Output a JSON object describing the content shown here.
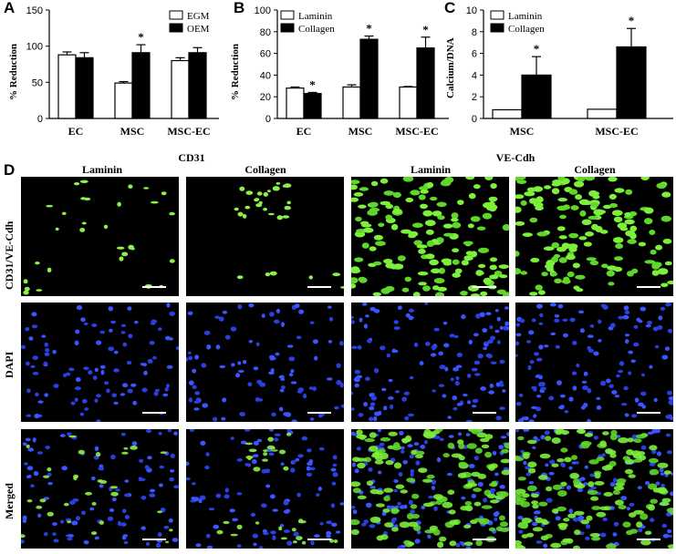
{
  "charts": [
    {
      "panel": "A",
      "type": "bar",
      "ylabel": "% Reduction",
      "ylim": [
        0,
        150
      ],
      "yticks": [
        "0",
        "50",
        "100",
        "150"
      ],
      "categories": [
        "EC",
        "MSC",
        "MSC-EC"
      ],
      "legend": [
        "EGM",
        "OEM"
      ],
      "series": [
        {
          "name": "EGM",
          "values": [
            88,
            49,
            80
          ],
          "errors": [
            4,
            2,
            4
          ],
          "fill": "#ffffff"
        },
        {
          "name": "OEM",
          "values": [
            84,
            91,
            91
          ],
          "errors": [
            7,
            11,
            7
          ],
          "fill": "#000000"
        }
      ],
      "significance": [
        {
          "category": 1,
          "series": 1,
          "mark": "*"
        }
      ]
    },
    {
      "panel": "B",
      "type": "bar",
      "ylabel": "% Reduction",
      "ylim": [
        0,
        100
      ],
      "yticks": [
        "0",
        "20",
        "40",
        "60",
        "80",
        "100"
      ],
      "categories": [
        "EC",
        "MSC",
        "MSC-EC"
      ],
      "legend": [
        "Laminin",
        "Collagen"
      ],
      "series": [
        {
          "name": "Laminin",
          "values": [
            28,
            29,
            29
          ],
          "errors": [
            1,
            2,
            0.5
          ],
          "fill": "#ffffff"
        },
        {
          "name": "Collagen",
          "values": [
            23,
            73,
            65
          ],
          "errors": [
            1,
            3,
            10
          ],
          "fill": "#000000"
        }
      ],
      "significance": [
        {
          "category": 0,
          "series": 1,
          "mark": "*"
        },
        {
          "category": 1,
          "series": 1,
          "mark": "*"
        },
        {
          "category": 2,
          "series": 1,
          "mark": "*"
        }
      ]
    },
    {
      "panel": "C",
      "type": "bar",
      "ylabel": "Calcium/DNA",
      "ylim": [
        0,
        10
      ],
      "yticks": [
        "0",
        "2",
        "4",
        "6",
        "8",
        "10"
      ],
      "categories": [
        "MSC",
        "MSC-EC"
      ],
      "legend": [
        "Laminin",
        "Collagen"
      ],
      "series": [
        {
          "name": "Laminin",
          "values": [
            0.8,
            0.85
          ],
          "errors": [
            0,
            0
          ],
          "fill": "#ffffff"
        },
        {
          "name": "Collagen",
          "values": [
            4.0,
            6.6
          ],
          "errors": [
            1.7,
            1.7
          ],
          "fill": "#000000"
        }
      ],
      "significance": [
        {
          "category": 0,
          "series": 1,
          "mark": "*"
        },
        {
          "category": 1,
          "series": 1,
          "mark": "*"
        }
      ]
    }
  ],
  "panelD": {
    "label": "D",
    "group_headers": [
      "CD31",
      "VE-Cdh"
    ],
    "column_headers": [
      "Laminin",
      "Collagen",
      "Laminin",
      "Collagen"
    ],
    "row_labels": [
      "CD31/VE-Cdh",
      "DAPI",
      "Merged"
    ]
  }
}
